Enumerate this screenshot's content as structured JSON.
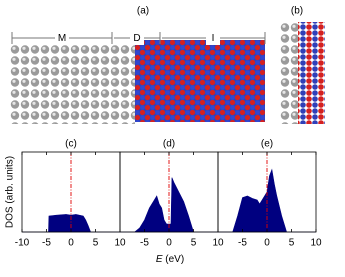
{
  "structure": {
    "label_a": "(a)",
    "label_b": "(b)",
    "regions": [
      "M",
      "D",
      "I"
    ]
  },
  "y_label": "DOS (arb. units)",
  "x_label_symbol": "E",
  "x_label_unit": "(eV)",
  "chart_data": [
    {
      "type": "area",
      "label": "(c)",
      "color": "#000080",
      "vline": 0,
      "vline_color": "#e00000",
      "xlim": [
        -10,
        10
      ],
      "ylim": [
        0,
        1
      ],
      "xticks": [
        -10,
        -5,
        0,
        5,
        10
      ],
      "x": [
        -10,
        -4.6,
        -4.5,
        -3,
        -1,
        0,
        1,
        2.5,
        3,
        3.5,
        4,
        10
      ],
      "values": [
        0,
        0,
        0.2,
        0.21,
        0.22,
        0.21,
        0.22,
        0.2,
        0.15,
        0.08,
        0,
        0
      ]
    },
    {
      "type": "area",
      "label": "(d)",
      "color": "#000080",
      "vline": 0,
      "vline_color": "#e00000",
      "xlim": [
        -10,
        10
      ],
      "ylim": [
        0,
        1
      ],
      "xticks": [
        -5,
        0,
        5,
        10
      ],
      "x": [
        -10,
        -7,
        -6,
        -5,
        -4,
        -3,
        -2.5,
        -2,
        -1.5,
        -1,
        -0.5,
        0,
        0.4,
        0.6,
        1,
        2,
        3,
        4,
        4.5,
        5,
        10
      ],
      "values": [
        0,
        0,
        0.05,
        0.15,
        0.3,
        0.4,
        0.45,
        0.35,
        0.3,
        0.15,
        0.1,
        0.1,
        0.1,
        0.68,
        0.62,
        0.5,
        0.38,
        0.2,
        0.1,
        0,
        0
      ]
    },
    {
      "type": "area",
      "label": "(e)",
      "color": "#000080",
      "vline": 0,
      "vline_color": "#e00000",
      "xlim": [
        -10,
        10
      ],
      "ylim": [
        0,
        1
      ],
      "xticks": [
        -5,
        0,
        5,
        10
      ],
      "x": [
        -10,
        -7,
        -6,
        -5,
        -4,
        -3,
        -2,
        -1.5,
        -1,
        0,
        0.5,
        1,
        1.5,
        2,
        3,
        3.5,
        4,
        10
      ],
      "values": [
        0,
        0,
        0.2,
        0.43,
        0.45,
        0.42,
        0.4,
        0.35,
        0.4,
        0.5,
        0.7,
        0.78,
        0.6,
        0.45,
        0.2,
        0.1,
        0,
        0
      ]
    }
  ]
}
